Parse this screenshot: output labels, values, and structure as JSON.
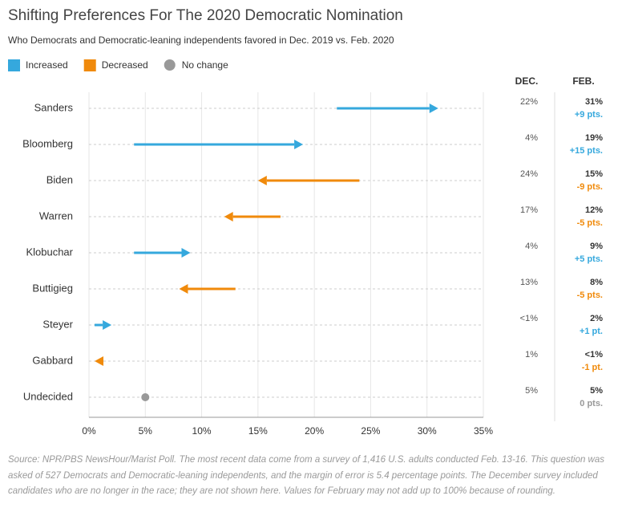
{
  "chart_data": {
    "type": "arrow",
    "title": "Shifting Preferences For The 2020 Democratic Nomination",
    "subtitle": "Who Democrats and Democratic-leaning independents favored in Dec. 2019 vs. Feb. 2020",
    "legend": [
      {
        "label": "Increased",
        "color": "#35a8dd"
      },
      {
        "label": "Decreased",
        "color": "#f08a0b"
      },
      {
        "label": "No change",
        "color": "#999999"
      }
    ],
    "categories": [
      "Sanders",
      "Bloomberg",
      "Biden",
      "Warren",
      "Klobuchar",
      "Buttigieg",
      "Steyer",
      "Gabbard",
      "Undecided"
    ],
    "series": [
      {
        "name": "DEC.",
        "values": [
          22,
          4,
          24,
          17,
          4,
          13,
          0.5,
          1,
          5
        ],
        "value_labels": [
          "22%",
          "4%",
          "24%",
          "17%",
          "4%",
          "13%",
          "<1%",
          "1%",
          "5%"
        ]
      },
      {
        "name": "FEB.",
        "values": [
          31,
          19,
          15,
          12,
          9,
          8,
          2,
          0.5,
          5
        ],
        "value_labels": [
          "31%",
          "19%",
          "15%",
          "12%",
          "9%",
          "8%",
          "2%",
          "<1%",
          "5%"
        ]
      }
    ],
    "change": {
      "values": [
        9,
        15,
        -9,
        -5,
        5,
        -5,
        1,
        -1,
        0
      ],
      "value_labels": [
        "+9 pts.",
        "+15 pts.",
        "-9 pts.",
        "-5 pts.",
        "+5 pts.",
        "-5 pts.",
        "+1 pt.",
        "-1 pt.",
        "0 pts."
      ]
    },
    "xlim": [
      0,
      35
    ],
    "xticks": [
      {
        "value": 0,
        "label": "0%"
      },
      {
        "value": 5,
        "label": "5%"
      },
      {
        "value": 10,
        "label": "10%"
      },
      {
        "value": 15,
        "label": "15%"
      },
      {
        "value": 20,
        "label": "20%"
      },
      {
        "value": 25,
        "label": "25%"
      },
      {
        "value": 30,
        "label": "30%"
      },
      {
        "value": 35,
        "label": "35%"
      }
    ],
    "grid": true,
    "source": "Source: NPR/PBS NewsHour/Marist Poll. The most recent data come from a survey of 1,416 U.S. adults conducted Feb. 13-16. This question was asked of 527 Democrats and Democratic-leaning independents, and the margin of error is 5.4 percentage points. The December survey included candidates who are no longer in the race; they are not shown here. Values for February may not add up to 100% because of rounding."
  }
}
